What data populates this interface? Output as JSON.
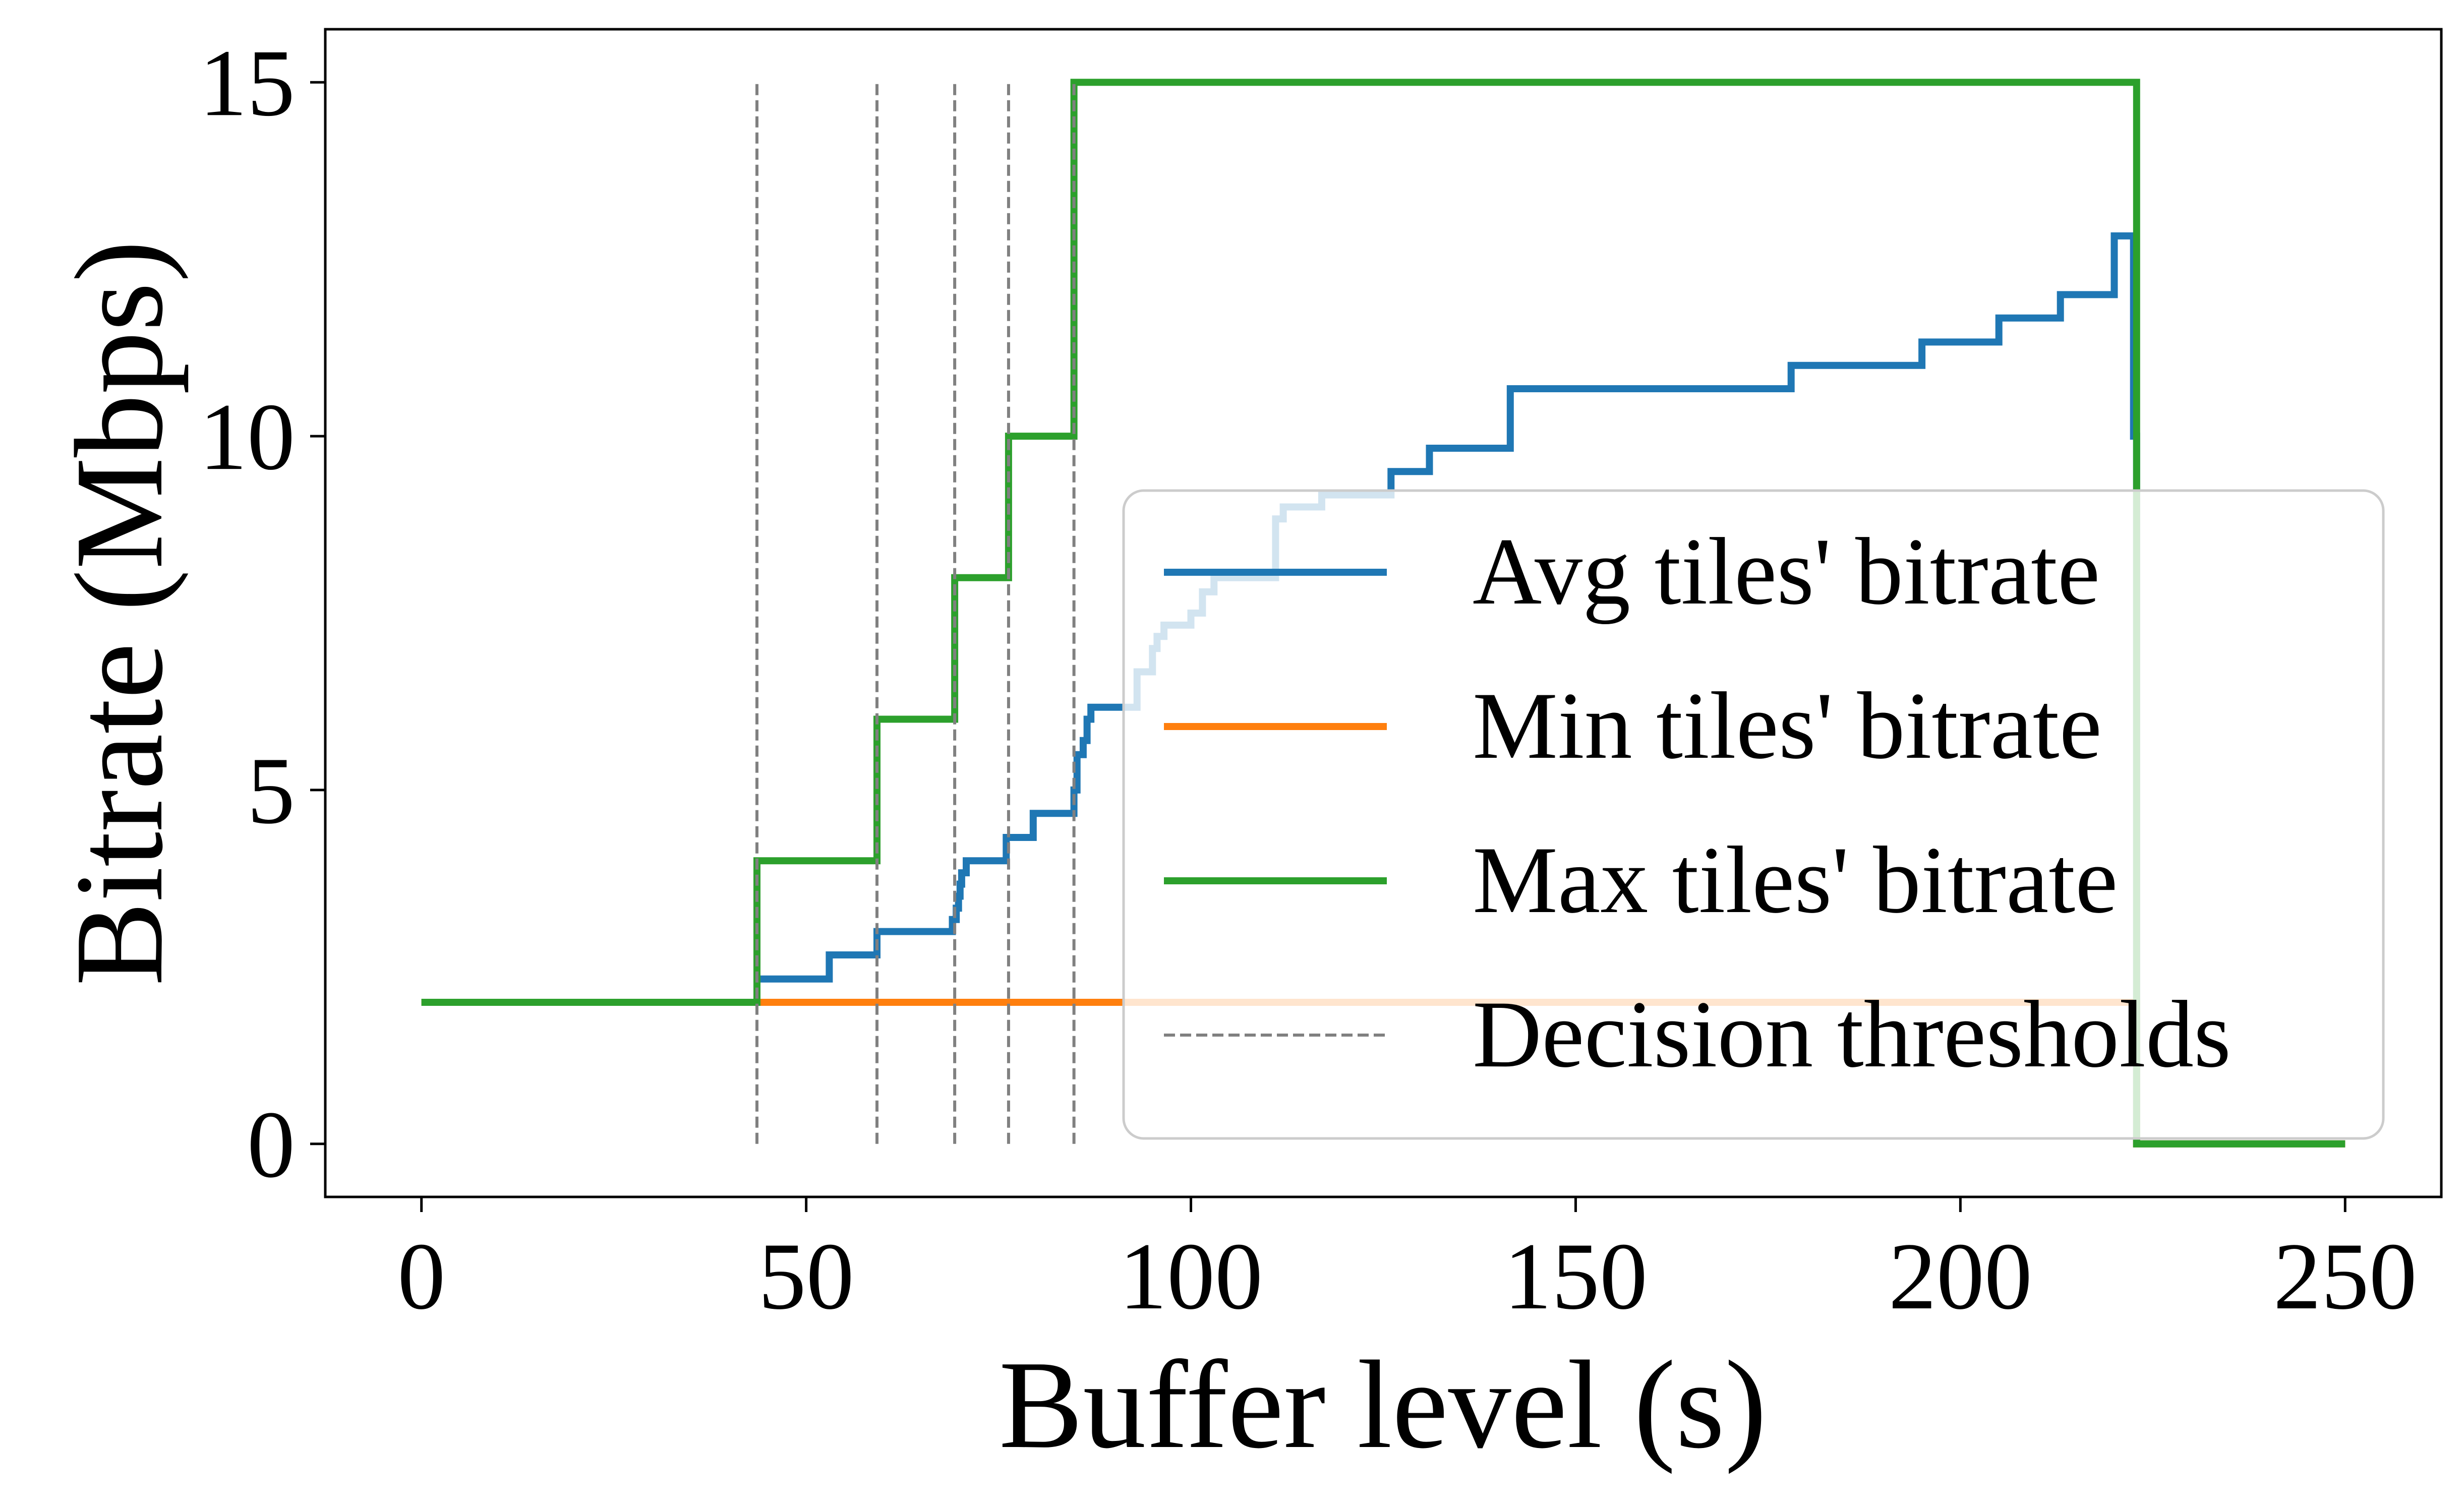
{
  "chart_data": {
    "type": "line",
    "title": "",
    "xlabel": "Buffer level (s)",
    "ylabel": "Bitrate (Mbps)",
    "xlim": [
      -12.5,
      262.5
    ],
    "ylim": [
      -0.75,
      15.75
    ],
    "xticks": [
      0,
      50,
      100,
      150,
      200,
      250
    ],
    "yticks": [
      0,
      5,
      10,
      15
    ],
    "grid": false,
    "legend_position": "lower-right",
    "series": [
      {
        "name": "Avg tiles' bitrate",
        "color": "#1f77b4",
        "step": true,
        "x": [
          0,
          43.6,
          53,
          59.2,
          69,
          69.5,
          69.8,
          70,
          70.2,
          70.8,
          76,
          79.5,
          84.8,
          85.2,
          86,
          86.5,
          87,
          93,
          95,
          95.6,
          96.5,
          100,
          101.5,
          103,
          111,
          112,
          117,
          126,
          131,
          141.5,
          178,
          195,
          205,
          213,
          220,
          222.5,
          222.9,
          250
        ],
        "y": [
          2,
          2.33,
          2.67,
          3,
          3.17,
          3.33,
          3.5,
          3.67,
          3.83,
          4,
          4.33,
          4.67,
          5,
          5.5,
          5.7,
          6.0,
          6.17,
          6.67,
          7,
          7.17,
          7.33,
          7.5,
          7.8,
          8,
          8.83,
          9,
          9.17,
          9.5,
          9.83,
          10.67,
          11,
          11.33,
          11.67,
          12,
          12.83,
          10,
          0,
          0
        ]
      },
      {
        "name": "Min tiles' bitrate",
        "color": "#ff7f0e",
        "step": true,
        "x": [
          0,
          222.9,
          250
        ],
        "y": [
          2,
          0,
          0
        ]
      },
      {
        "name": "Max tiles' bitrate",
        "color": "#2ca02c",
        "step": true,
        "x": [
          0,
          43.6,
          59.2,
          69.3,
          76.3,
          84.8,
          222.9,
          250
        ],
        "y": [
          2,
          4,
          6,
          8,
          10,
          15,
          0,
          0
        ]
      }
    ],
    "thresholds": {
      "name": "Decision thresholds",
      "color": "#808080",
      "style": "dashed",
      "x": [
        43.6,
        59.2,
        69.3,
        76.3,
        84.8
      ],
      "y_range": [
        0,
        15
      ]
    }
  }
}
